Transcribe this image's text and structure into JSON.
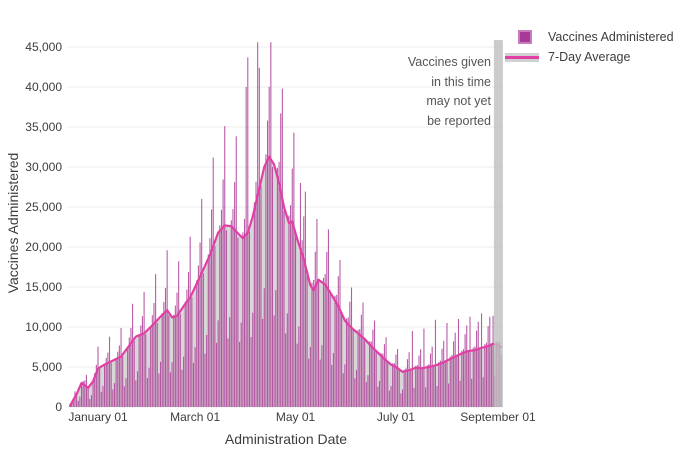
{
  "chart_data": {
    "type": "bar",
    "title": "",
    "xlabel": "Administration Date",
    "ylabel": "Vaccines Administered",
    "ylim": [
      0,
      45875
    ],
    "grid": true,
    "legend_position": "top-right-outside",
    "y_ticks": [
      {
        "v": 0,
        "label": "0"
      },
      {
        "v": 5000,
        "label": "5,000"
      },
      {
        "v": 10000,
        "label": "10,000"
      },
      {
        "v": 15000,
        "label": "15,000"
      },
      {
        "v": 20000,
        "label": "20,000"
      },
      {
        "v": 25000,
        "label": "25,000"
      },
      {
        "v": 30000,
        "label": "30,000"
      },
      {
        "v": 35000,
        "label": "35,000"
      },
      {
        "v": 40000,
        "label": "40,000"
      },
      {
        "v": 45000,
        "label": "45,000"
      }
    ],
    "x_ticks": [
      {
        "day": 17,
        "label": "January 01"
      },
      {
        "day": 76,
        "label": "March 01"
      },
      {
        "day": 137,
        "label": "May 01"
      },
      {
        "day": 198,
        "label": "July 01"
      },
      {
        "day": 260,
        "label": "September 01"
      }
    ],
    "days_total": 263,
    "series": [
      {
        "name": "Vaccines Administered",
        "type": "bar",
        "color": "#ad3f98"
      },
      {
        "name": "7-Day Average",
        "type": "line",
        "color": "#e23fa5",
        "area_color": "#d7d7d7"
      }
    ],
    "avg_points": [
      [
        0,
        150
      ],
      [
        4,
        1600
      ],
      [
        7,
        3000
      ],
      [
        11,
        2400
      ],
      [
        14,
        3200
      ],
      [
        17,
        4800
      ],
      [
        21,
        5300
      ],
      [
        24,
        5600
      ],
      [
        31,
        6300
      ],
      [
        35,
        7400
      ],
      [
        40,
        8800
      ],
      [
        45,
        9200
      ],
      [
        50,
        10200
      ],
      [
        55,
        11300
      ],
      [
        59,
        12100
      ],
      [
        62,
        11200
      ],
      [
        65,
        11400
      ],
      [
        69,
        12600
      ],
      [
        73,
        13700
      ],
      [
        76,
        15000
      ],
      [
        81,
        17200
      ],
      [
        85,
        19000
      ],
      [
        90,
        21800
      ],
      [
        94,
        22700
      ],
      [
        98,
        22600
      ],
      [
        102,
        21700
      ],
      [
        105,
        21100
      ],
      [
        108,
        21800
      ],
      [
        111,
        23800
      ],
      [
        114,
        26500
      ],
      [
        118,
        30000
      ],
      [
        121,
        31300
      ],
      [
        124,
        30300
      ],
      [
        127,
        28000
      ],
      [
        130,
        25000
      ],
      [
        133,
        23000
      ],
      [
        135,
        23200
      ],
      [
        138,
        21000
      ],
      [
        142,
        18500
      ],
      [
        146,
        15200
      ],
      [
        148,
        14600
      ],
      [
        151,
        15900
      ],
      [
        155,
        15300
      ],
      [
        159,
        14000
      ],
      [
        163,
        12600
      ],
      [
        167,
        10800
      ],
      [
        171,
        9900
      ],
      [
        175,
        9200
      ],
      [
        179,
        8500
      ],
      [
        183,
        7600
      ],
      [
        187,
        6800
      ],
      [
        191,
        6000
      ],
      [
        195,
        5300
      ],
      [
        198,
        5000
      ],
      [
        202,
        4400
      ],
      [
        206,
        4600
      ],
      [
        210,
        4900
      ],
      [
        214,
        4850
      ],
      [
        218,
        5000
      ],
      [
        222,
        5200
      ],
      [
        226,
        5500
      ],
      [
        230,
        5900
      ],
      [
        234,
        6300
      ],
      [
        238,
        6700
      ],
      [
        242,
        7000
      ],
      [
        246,
        7100
      ],
      [
        250,
        7400
      ],
      [
        254,
        7600
      ],
      [
        257,
        7900
      ],
      [
        260,
        7700
      ],
      [
        262,
        7500
      ]
    ],
    "bar_generation": {
      "start_weekday_index": 0,
      "weekday_factors": [
        1.0,
        1.12,
        1.28,
        1.5,
        1.02,
        0.36,
        0.52
      ],
      "wiggle_amp": 0.05,
      "wiggle_freq": 2.7,
      "max_bar": 45600,
      "overrides": {
        "59": 19600,
        "107": 40000,
        "108": 43700,
        "114": 45600,
        "115": 42400,
        "120": 35800,
        "128": 36700,
        "140": 28000,
        "208": 9500,
        "215": 9800,
        "222": 10900,
        "229": 10500,
        "236": 11000,
        "243": 11300,
        "250": 11700,
        "257": 11400
      },
      "last_days_damp": [
        [
          261,
          0.8
        ],
        [
          262,
          0.6
        ]
      ]
    },
    "unreported_zone": {
      "from_day": 257.5,
      "to_day": 263,
      "color": "#bfbfbf"
    }
  },
  "colors": {
    "bar": "#ad3f98",
    "bar_opacity": 0.85,
    "avg_line": "#e23fa5",
    "avg_area": "#d7d7d7",
    "grid": "#ececec",
    "text": "#3d3d3d",
    "annotation_text": "#555555",
    "unreported_bar": "#bfbfbf"
  },
  "legend": {
    "items": [
      {
        "label": "Vaccines Administered",
        "swatch": "magenta-square"
      },
      {
        "label": "7-Day Average",
        "swatch": "gray-band-with-pink-line"
      }
    ]
  },
  "annotation": {
    "lines": [
      "Vaccines given",
      "in this time",
      "may not yet",
      "be reported"
    ]
  },
  "axes": {
    "x_title": "Administration Date",
    "y_title": "Vaccines Administered"
  }
}
